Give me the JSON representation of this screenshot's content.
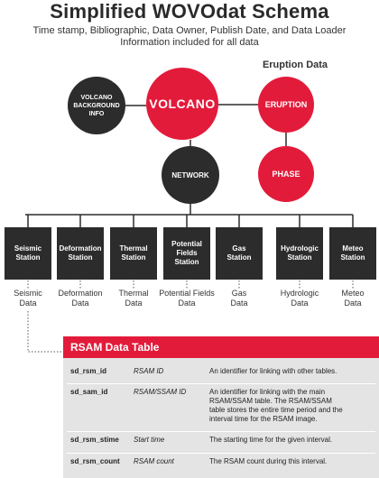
{
  "header": {
    "title": "Simplified WOVOdat Schema",
    "subtitle_line1": "Time stamp, Bibliographic, Data Owner, Publish Date, and Data Loader",
    "subtitle_line2": "Information included for all data"
  },
  "eruption_data_label": "Eruption Data",
  "nodes": {
    "volcano_bg": [
      "VOLCANO",
      "BACKGROUND",
      "INFO"
    ],
    "volcano": "VOLCANO",
    "eruption": "ERUPTION",
    "network": "NETWORK",
    "phase": "PHASE"
  },
  "stations": [
    {
      "lines": [
        "Seismic",
        "Station"
      ],
      "data": [
        "Seismic",
        "Data"
      ]
    },
    {
      "lines": [
        "Deformation",
        "Station"
      ],
      "data": [
        "Deformation",
        "Data"
      ]
    },
    {
      "lines": [
        "Thermal",
        "Station"
      ],
      "data": [
        "Thermal",
        "Data"
      ]
    },
    {
      "lines": [
        "Potential",
        "Fields",
        "Station"
      ],
      "data": [
        "Potential Fields",
        "Data"
      ]
    },
    {
      "lines": [
        "Gas",
        "Station"
      ],
      "data": [
        "Gas",
        "Data"
      ]
    },
    {
      "lines": [
        "Hydrologic",
        "Station"
      ],
      "data": [
        "Hydrologic",
        "Data"
      ]
    },
    {
      "lines": [
        "Meteo",
        "Station"
      ],
      "data": [
        "Meteo",
        "Data"
      ]
    }
  ],
  "rsam_table": {
    "title": "RSAM Data Table",
    "rows": [
      {
        "field": "sd_rsm_id",
        "name": "RSAM ID",
        "desc": [
          "An identifier for linking with other tables."
        ]
      },
      {
        "field": "sd_sam_id",
        "name": "RSAM/SSAM ID",
        "desc": [
          "An identifier for linking with the main",
          "RSAM/SSAM table. The RSAM/SSAM",
          "table stores the entire time period and the",
          "interval time for the RSAM image."
        ]
      },
      {
        "field": "sd_rsm_stime",
        "name": "Start time",
        "desc": [
          "The starting time for the given interval."
        ]
      },
      {
        "field": "sd_rsm_count",
        "name": "RSAM count",
        "desc": [
          "The RSAM count during this interval."
        ]
      }
    ]
  },
  "colors": {
    "accent_red": "#e31b3b",
    "dark": "#2c2c2c",
    "table_bg": "#e4e4e4"
  }
}
